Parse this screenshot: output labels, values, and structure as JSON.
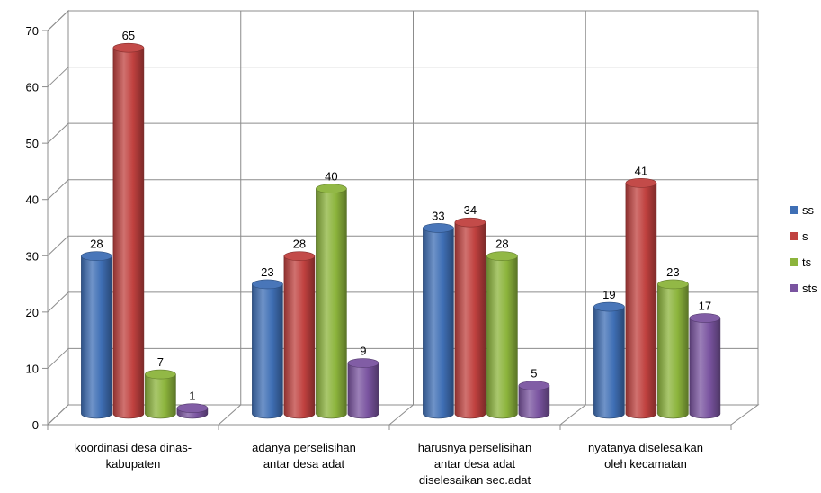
{
  "chart_data": {
    "type": "bar",
    "categories": [
      [
        "koordinasi desa dinas-",
        "kabupaten"
      ],
      [
        "adanya perselisihan",
        "antar desa adat"
      ],
      [
        "harusnya perselisihan",
        "antar desa adat",
        "diselesaikan sec.adat"
      ],
      [
        "nyatanya diselesaikan",
        "oleh kecamatan"
      ]
    ],
    "series": [
      {
        "name": "ss",
        "color": "#3f6fb5",
        "values": [
          28,
          23,
          33,
          19
        ]
      },
      {
        "name": "s",
        "color": "#c0413f",
        "values": [
          65,
          28,
          34,
          41
        ]
      },
      {
        "name": "ts",
        "color": "#8cb43c",
        "values": [
          7,
          40,
          28,
          23
        ]
      },
      {
        "name": "sts",
        "color": "#7a54a0",
        "values": [
          1,
          9,
          5,
          17
        ]
      }
    ],
    "ylim": [
      0,
      70
    ],
    "yticks": [
      0,
      10,
      20,
      30,
      40,
      50,
      60,
      70
    ],
    "grid": true,
    "legend": "right",
    "style": "3d-cylinder"
  }
}
